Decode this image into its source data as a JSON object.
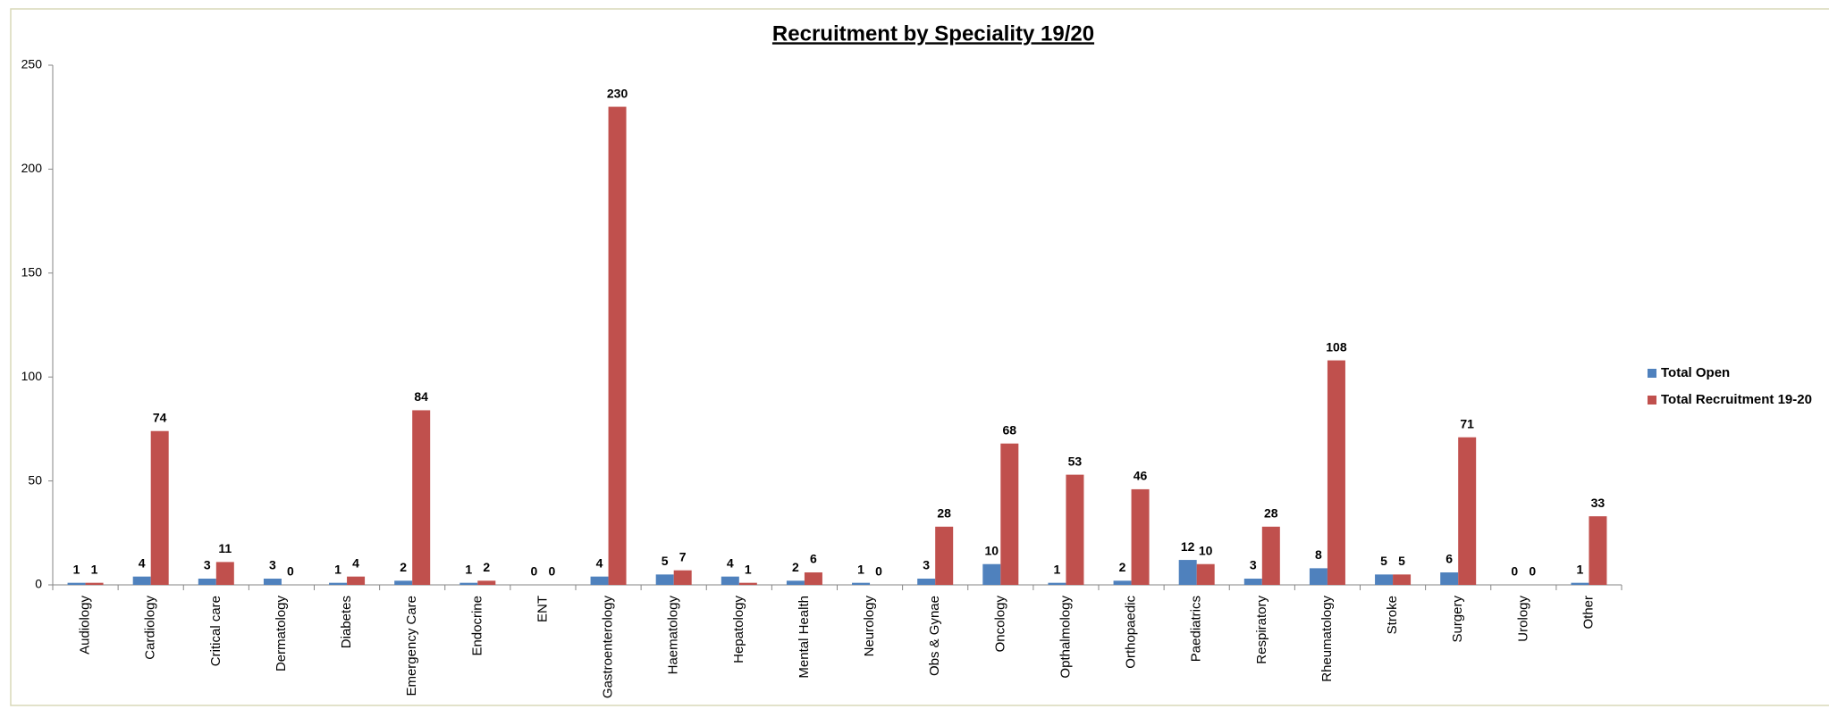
{
  "chart_data": {
    "type": "bar",
    "title": "Recruitment by Speciality 19/20",
    "categories": [
      "Audiology",
      "Cardiology",
      "Critical care",
      "Dermatology",
      "Diabetes",
      "Emergency Care",
      "Endocrine",
      "ENT",
      "Gastroenterology",
      "Haematology",
      "Hepatology",
      "Mental Health",
      "Neurology",
      "Obs & Gynae",
      "Oncology",
      "Opthalmology",
      "Orthopaedic",
      "Paediatrics",
      "Respiratory",
      "Rheumatology",
      "Stroke",
      "Surgery",
      "Urology",
      "Other"
    ],
    "series": [
      {
        "name": "Total Open",
        "color": "#4f81bd",
        "values": [
          1,
          4,
          3,
          3,
          1,
          2,
          1,
          0,
          4,
          5,
          4,
          2,
          1,
          3,
          10,
          1,
          2,
          12,
          3,
          8,
          5,
          6,
          0,
          1
        ]
      },
      {
        "name": "Total Recruitment 19-20",
        "color": "#c0504d",
        "values": [
          1,
          74,
          11,
          0,
          4,
          84,
          2,
          0,
          230,
          7,
          1,
          6,
          0,
          28,
          68,
          53,
          46,
          10,
          28,
          108,
          5,
          71,
          0,
          33
        ]
      }
    ],
    "ylim": [
      0,
      250
    ],
    "yticks": [
      0,
      50,
      100,
      150,
      200,
      250
    ],
    "grid": false,
    "legend": "right"
  }
}
